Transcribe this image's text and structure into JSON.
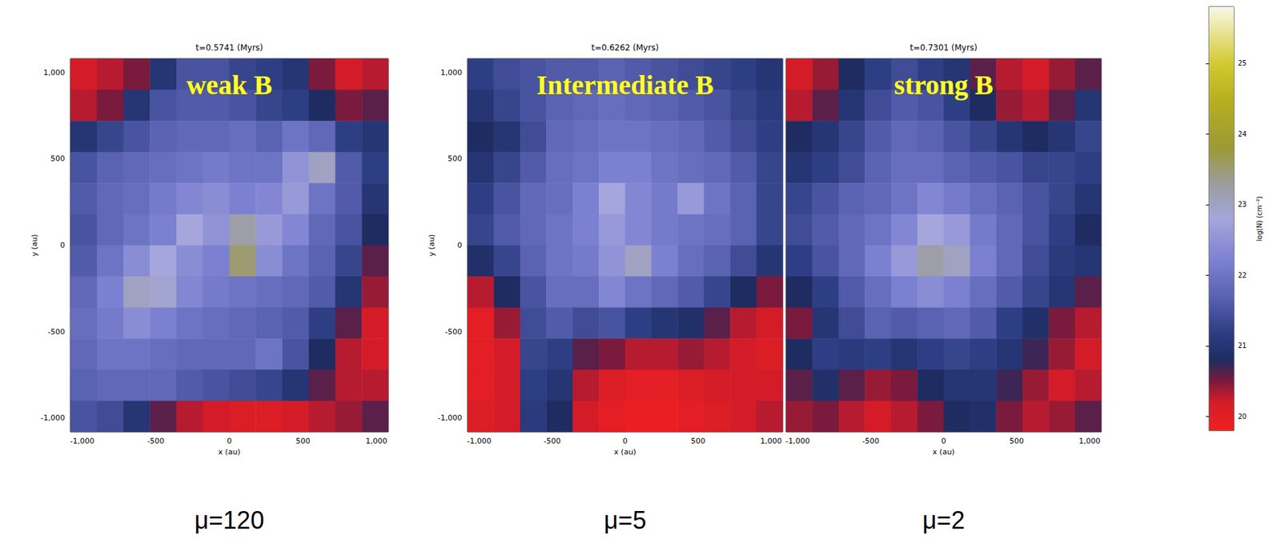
{
  "chart_data": [
    {
      "type": "heatmap",
      "title": "t=0.5741 (Myrs)",
      "annotation": "weak B",
      "caption": "μ=120",
      "x_label": "x (au)",
      "y_label": "y (au)",
      "xlim": [
        -1080,
        1080
      ],
      "ylim": [
        -1080,
        1080
      ],
      "xticks": [
        -1000,
        -500,
        0,
        500,
        1000
      ],
      "yticks": [
        -1000,
        -500,
        0,
        500,
        1000
      ],
      "x": [
        -990,
        -810,
        -630,
        -450,
        -270,
        -90,
        90,
        270,
        450,
        630,
        810,
        990
      ],
      "y": [
        990,
        810,
        630,
        450,
        270,
        90,
        -90,
        -270,
        -450,
        -630,
        -810,
        -990
      ],
      "z": [
        [
          20.2,
          20.3,
          20.5,
          21.0,
          21.5,
          21.5,
          21.3,
          21.2,
          21.0,
          20.5,
          20.2,
          20.3
        ],
        [
          20.3,
          20.5,
          21.0,
          21.5,
          21.6,
          21.6,
          21.5,
          21.3,
          21.2,
          20.8,
          20.5,
          20.6
        ],
        [
          21.0,
          21.3,
          21.5,
          21.7,
          21.8,
          21.8,
          21.9,
          21.7,
          22.0,
          21.8,
          21.2,
          21.0
        ],
        [
          21.5,
          21.7,
          21.8,
          21.9,
          22.0,
          22.1,
          22.0,
          22.0,
          22.5,
          23.0,
          21.6,
          21.2
        ],
        [
          21.6,
          21.8,
          21.9,
          22.1,
          22.3,
          22.4,
          22.2,
          22.3,
          22.6,
          22.0,
          21.6,
          21.0
        ],
        [
          21.5,
          21.8,
          22.0,
          22.2,
          22.8,
          22.5,
          23.2,
          22.6,
          22.3,
          21.8,
          21.5,
          20.8
        ],
        [
          21.6,
          22.0,
          22.4,
          22.8,
          22.4,
          22.2,
          23.5,
          22.4,
          22.0,
          21.7,
          21.3,
          20.6
        ],
        [
          21.8,
          22.2,
          23.0,
          22.9,
          22.3,
          22.1,
          22.0,
          21.9,
          21.8,
          21.6,
          21.0,
          20.4
        ],
        [
          21.9,
          22.1,
          22.4,
          22.2,
          22.0,
          21.9,
          21.8,
          21.7,
          21.6,
          21.2,
          20.6,
          20.2
        ],
        [
          21.8,
          22.0,
          22.0,
          21.9,
          21.8,
          21.8,
          21.8,
          22.0,
          21.5,
          20.8,
          20.3,
          20.2
        ],
        [
          21.7,
          21.8,
          21.8,
          21.8,
          21.6,
          21.5,
          21.4,
          21.3,
          21.0,
          20.6,
          20.3,
          20.3
        ],
        [
          21.5,
          21.4,
          21.0,
          20.6,
          20.3,
          20.2,
          20.1,
          20.1,
          20.2,
          20.3,
          20.4,
          20.6
        ]
      ]
    },
    {
      "type": "heatmap",
      "title": "t=0.6262 (Myrs)",
      "annotation": "Intermediate B",
      "caption": "μ=5",
      "x_label": "x (au)",
      "y_label": "y (au)",
      "xlim": [
        -1080,
        1080
      ],
      "ylim": [
        -1080,
        1080
      ],
      "xticks": [
        -1000,
        -500,
        0,
        500,
        1000
      ],
      "yticks": [
        -1000,
        -500,
        0,
        500,
        1000
      ],
      "x": [
        -990,
        -810,
        -630,
        -450,
        -270,
        -90,
        90,
        270,
        450,
        630,
        810,
        990
      ],
      "y": [
        990,
        810,
        630,
        450,
        270,
        90,
        -90,
        -270,
        -450,
        -630,
        -810,
        -990
      ],
      "z": [
        [
          21.2,
          21.4,
          21.5,
          21.6,
          21.6,
          21.7,
          21.6,
          21.5,
          21.4,
          21.3,
          21.2,
          21.0
        ],
        [
          21.0,
          21.3,
          21.5,
          21.7,
          21.8,
          21.9,
          21.8,
          21.7,
          21.6,
          21.5,
          21.3,
          21.1
        ],
        [
          20.8,
          21.0,
          21.4,
          21.8,
          21.9,
          22.0,
          22.0,
          21.9,
          21.8,
          21.6,
          21.4,
          21.2
        ],
        [
          21.0,
          21.3,
          21.6,
          21.9,
          22.0,
          22.2,
          22.2,
          22.0,
          21.9,
          21.8,
          21.6,
          21.3
        ],
        [
          21.2,
          21.5,
          21.8,
          21.9,
          22.2,
          22.8,
          22.3,
          22.1,
          22.6,
          22.0,
          21.7,
          21.3
        ],
        [
          21.3,
          21.6,
          21.8,
          22.0,
          22.2,
          22.6,
          22.3,
          22.1,
          22.0,
          21.9,
          21.7,
          21.3
        ],
        [
          20.9,
          21.3,
          21.7,
          22.0,
          22.1,
          22.5,
          23.0,
          22.2,
          21.9,
          21.7,
          21.4,
          21.0
        ],
        [
          20.3,
          20.8,
          21.5,
          21.9,
          21.9,
          22.3,
          22.0,
          21.8,
          21.6,
          21.3,
          20.8,
          20.5
        ],
        [
          20.0,
          20.4,
          21.4,
          21.6,
          21.4,
          21.5,
          21.2,
          21.0,
          20.9,
          20.6,
          20.3,
          20.2
        ],
        [
          20.0,
          20.2,
          21.3,
          21.2,
          20.6,
          20.5,
          20.3,
          20.3,
          20.4,
          20.3,
          20.2,
          20.1
        ],
        [
          20.0,
          20.2,
          21.2,
          21.0,
          20.3,
          20.1,
          20.0,
          20.0,
          20.1,
          20.2,
          20.2,
          20.2
        ],
        [
          20.1,
          20.2,
          21.1,
          20.8,
          20.2,
          20.0,
          19.9,
          19.9,
          20.0,
          20.1,
          20.2,
          20.3
        ]
      ]
    },
    {
      "type": "heatmap",
      "title": "t=0.7301 (Myrs)",
      "annotation": "strong B",
      "caption": "μ=2",
      "x_label": "x (au)",
      "y_label": "y (au)",
      "xlim": [
        -1080,
        1080
      ],
      "ylim": [
        -1080,
        1080
      ],
      "xticks": [
        -1000,
        -500,
        0,
        500,
        1000
      ],
      "yticks": [
        -1000,
        -500,
        0,
        500,
        1000
      ],
      "x": [
        -990,
        -810,
        -630,
        -450,
        -270,
        -90,
        90,
        270,
        450,
        630,
        810,
        990
      ],
      "y": [
        990,
        810,
        630,
        450,
        270,
        90,
        -90,
        -270,
        -450,
        -630,
        -810,
        -990
      ],
      "z": [
        [
          20.2,
          20.4,
          20.8,
          21.2,
          21.4,
          21.2,
          21.0,
          20.6,
          20.3,
          20.2,
          20.4,
          20.6
        ],
        [
          20.3,
          20.6,
          21.0,
          21.4,
          21.6,
          21.5,
          21.2,
          20.8,
          20.4,
          20.3,
          20.6,
          21.0
        ],
        [
          20.8,
          21.0,
          21.3,
          21.6,
          21.8,
          21.7,
          21.5,
          21.3,
          21.0,
          20.8,
          21.0,
          21.3
        ],
        [
          21.0,
          21.2,
          21.4,
          21.7,
          21.9,
          21.9,
          21.7,
          21.6,
          21.5,
          21.3,
          21.3,
          21.2
        ],
        [
          21.3,
          21.5,
          21.7,
          21.8,
          22.0,
          22.3,
          22.1,
          21.9,
          21.7,
          21.5,
          21.3,
          21.0
        ],
        [
          21.4,
          21.6,
          21.8,
          22.0,
          22.3,
          22.8,
          22.6,
          22.1,
          21.8,
          21.5,
          21.2,
          20.8
        ],
        [
          21.2,
          21.5,
          21.8,
          22.2,
          22.6,
          23.2,
          23.0,
          22.2,
          21.8,
          21.4,
          21.1,
          21.0
        ],
        [
          20.8,
          21.2,
          21.6,
          21.9,
          22.2,
          22.4,
          22.2,
          21.9,
          21.6,
          21.3,
          21.0,
          20.6
        ],
        [
          20.5,
          21.0,
          21.4,
          21.7,
          21.6,
          21.7,
          21.8,
          21.6,
          21.2,
          20.9,
          20.5,
          20.3
        ],
        [
          20.8,
          21.2,
          21.1,
          21.2,
          21.0,
          21.2,
          21.3,
          21.2,
          21.0,
          20.7,
          20.4,
          20.2
        ],
        [
          20.6,
          20.9,
          20.6,
          20.4,
          20.5,
          20.8,
          21.0,
          21.0,
          20.7,
          20.4,
          20.2,
          20.3
        ],
        [
          20.4,
          20.5,
          20.3,
          20.2,
          20.3,
          20.5,
          20.8,
          20.9,
          20.5,
          20.3,
          20.4,
          20.6
        ]
      ]
    }
  ],
  "colorbar": {
    "label": "log(N) (cm⁻²)",
    "lim": [
      19.8,
      25.8
    ],
    "ticks": [
      20,
      21,
      22,
      23,
      24,
      25
    ]
  }
}
